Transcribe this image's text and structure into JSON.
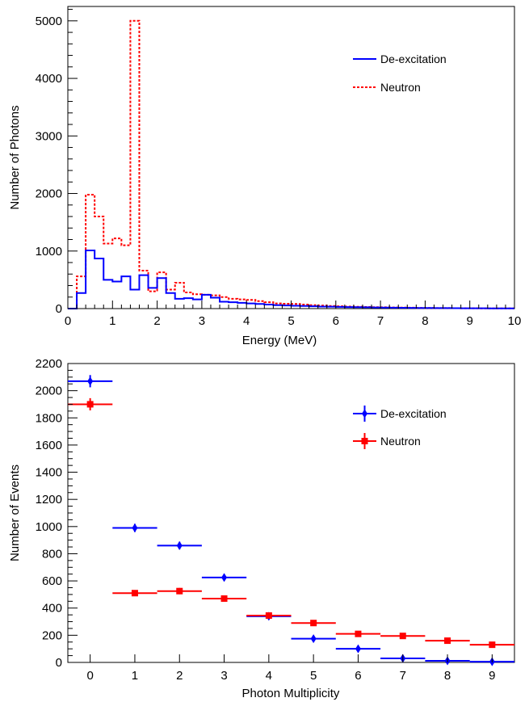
{
  "chart_data": [
    {
      "type": "line",
      "style": "step-histogram",
      "xlabel": "Energy (MeV)",
      "ylabel": "Number of Photons",
      "xlim": [
        0,
        10
      ],
      "ylim": [
        0,
        5250
      ],
      "x_ticks": [
        0,
        1,
        2,
        3,
        4,
        5,
        6,
        7,
        8,
        9,
        10
      ],
      "y_ticks": [
        0,
        1000,
        2000,
        3000,
        4000,
        5000
      ],
      "bin_width": 0.2,
      "bin_edges": [
        0,
        0.2,
        0.4,
        0.6,
        0.8,
        1.0,
        1.2,
        1.4,
        1.6,
        1.8,
        2.0,
        2.2,
        2.4,
        2.6,
        2.8,
        3.0,
        3.2,
        3.4,
        3.6,
        3.8,
        4.0,
        4.2,
        4.4,
        4.6,
        4.8,
        5.0,
        5.2,
        5.4,
        5.6,
        5.8,
        6.0,
        6.2,
        6.4,
        6.6,
        6.8,
        7.0,
        7.2,
        7.4,
        7.6,
        7.8,
        8.0,
        8.2,
        8.4,
        8.6,
        8.8,
        9.0,
        9.2,
        9.4,
        9.6,
        9.8,
        10.0
      ],
      "legend_position": "top-right",
      "series": [
        {
          "name": "De-excitation",
          "color": "#0000ff",
          "line": "solid",
          "values": [
            0,
            270,
            1010,
            870,
            500,
            470,
            560,
            330,
            580,
            360,
            530,
            270,
            170,
            180,
            160,
            240,
            190,
            120,
            110,
            100,
            90,
            80,
            70,
            60,
            55,
            50,
            45,
            40,
            36,
            33,
            30,
            27,
            25,
            22,
            20,
            18,
            16,
            14,
            12,
            11,
            10,
            9,
            8,
            7,
            6,
            5,
            5,
            4,
            4,
            3
          ]
        },
        {
          "name": "Neutron",
          "color": "#ff0000",
          "line": "dashed",
          "values": [
            0,
            560,
            1980,
            1600,
            1130,
            1220,
            1100,
            5000,
            660,
            300,
            630,
            330,
            450,
            280,
            250,
            240,
            230,
            200,
            170,
            160,
            150,
            130,
            110,
            90,
            85,
            80,
            70,
            60,
            52,
            45,
            40,
            35,
            32,
            28,
            25,
            22,
            20,
            18,
            15,
            12,
            10,
            9,
            8,
            7,
            6,
            5,
            4,
            4,
            3,
            3
          ]
        }
      ]
    },
    {
      "type": "scatter",
      "style": "error-bars",
      "xlabel": "Photon Multiplicity",
      "ylabel": "Number of Events",
      "xlim": [
        -0.5,
        9.5
      ],
      "ylim": [
        0,
        2200
      ],
      "x_ticks": [
        0,
        1,
        2,
        3,
        4,
        5,
        6,
        7,
        8,
        9
      ],
      "y_ticks": [
        0,
        200,
        400,
        600,
        800,
        1000,
        1200,
        1400,
        1600,
        1800,
        2000,
        2200
      ],
      "x_halfwidth": 0.5,
      "legend_position": "top-right",
      "series": [
        {
          "name": "De-excitation",
          "color": "#0000ff",
          "marker": "diamond",
          "x": [
            0,
            1,
            2,
            3,
            4,
            5,
            6,
            7,
            8,
            9
          ],
          "y": [
            2070,
            990,
            860,
            625,
            340,
            175,
            100,
            30,
            12,
            5
          ],
          "yerr": [
            45,
            30,
            28,
            25,
            18,
            13,
            10,
            6,
            3,
            2
          ]
        },
        {
          "name": "Neutron",
          "color": "#ff0000",
          "marker": "square",
          "x": [
            0,
            1,
            2,
            3,
            4,
            5,
            6,
            7,
            8,
            9
          ],
          "y": [
            1900,
            510,
            525,
            470,
            345,
            290,
            210,
            195,
            160,
            130
          ],
          "yerr": [
            45,
            22,
            23,
            21,
            18,
            17,
            14,
            14,
            12,
            11
          ]
        }
      ]
    }
  ]
}
